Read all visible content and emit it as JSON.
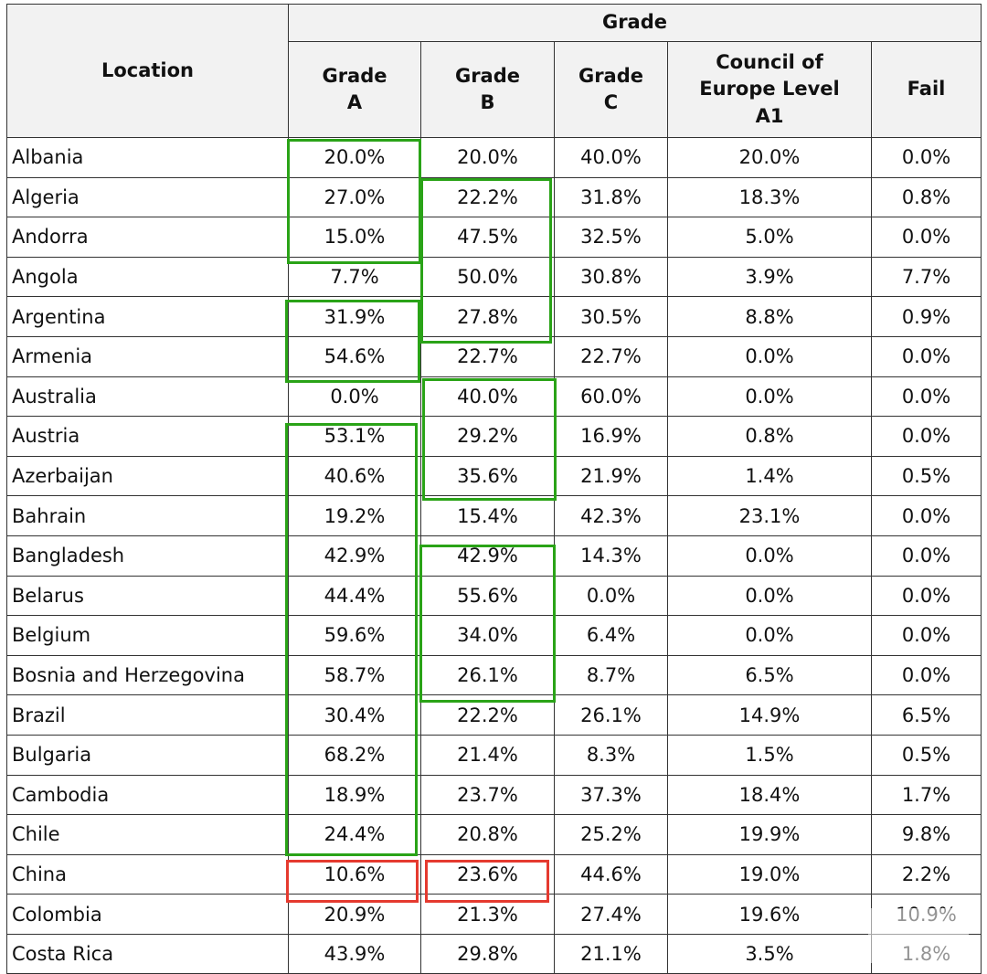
{
  "headers": {
    "location": "Location",
    "grade": "Grade",
    "grade_a_line1": "Grade",
    "grade_a_line2": "A",
    "grade_b_line1": "Grade",
    "grade_b_line2": "B",
    "grade_c_line1": "Grade",
    "grade_c_line2": "C",
    "coe_line1": "Council of",
    "coe_line2": "Europe Level",
    "coe_line3": "A1",
    "fail": "Fail"
  },
  "rows": [
    [
      "Albania",
      "20.0%",
      "20.0%",
      "40.0%",
      "20.0%",
      "0.0%"
    ],
    [
      "Algeria",
      "27.0%",
      "22.2%",
      "31.8%",
      "18.3%",
      "0.8%"
    ],
    [
      "Andorra",
      "15.0%",
      "47.5%",
      "32.5%",
      "5.0%",
      "0.0%"
    ],
    [
      "Angola",
      "7.7%",
      "50.0%",
      "30.8%",
      "3.9%",
      "7.7%"
    ],
    [
      "Argentina",
      "31.9%",
      "27.8%",
      "30.5%",
      "8.8%",
      "0.9%"
    ],
    [
      "Armenia",
      "54.6%",
      "22.7%",
      "22.7%",
      "0.0%",
      "0.0%"
    ],
    [
      "Australia",
      "0.0%",
      "40.0%",
      "60.0%",
      "0.0%",
      "0.0%"
    ],
    [
      "Austria",
      "53.1%",
      "29.2%",
      "16.9%",
      "0.8%",
      "0.0%"
    ],
    [
      "Azerbaijan",
      "40.6%",
      "35.6%",
      "21.9%",
      "1.4%",
      "0.5%"
    ],
    [
      "Bahrain",
      "19.2%",
      "15.4%",
      "42.3%",
      "23.1%",
      "0.0%"
    ],
    [
      "Bangladesh",
      "42.9%",
      "42.9%",
      "14.3%",
      "0.0%",
      "0.0%"
    ],
    [
      "Belarus",
      "44.4%",
      "55.6%",
      "0.0%",
      "0.0%",
      "0.0%"
    ],
    [
      "Belgium",
      "59.6%",
      "34.0%",
      "6.4%",
      "0.0%",
      "0.0%"
    ],
    [
      "Bosnia and Herzegovina",
      "58.7%",
      "26.1%",
      "8.7%",
      "6.5%",
      "0.0%"
    ],
    [
      "Brazil",
      "30.4%",
      "22.2%",
      "26.1%",
      "14.9%",
      "6.5%"
    ],
    [
      "Bulgaria",
      "68.2%",
      "21.4%",
      "8.3%",
      "1.5%",
      "0.5%"
    ],
    [
      "Cambodia",
      "18.9%",
      "23.7%",
      "37.3%",
      "18.4%",
      "1.7%"
    ],
    [
      "Chile",
      "24.4%",
      "20.8%",
      "25.2%",
      "19.9%",
      "9.8%"
    ],
    [
      "China",
      "10.6%",
      "23.6%",
      "44.6%",
      "19.0%",
      "2.2%"
    ],
    [
      "Colombia",
      "20.9%",
      "21.3%",
      "27.4%",
      "19.6%",
      "10.9%"
    ],
    [
      "Costa Rica",
      "43.9%",
      "29.8%",
      "21.1%",
      "3.5%",
      "1.8%"
    ]
  ],
  "highlight_colors": {
    "green": "#2aa317",
    "red": "#e53a2f"
  }
}
